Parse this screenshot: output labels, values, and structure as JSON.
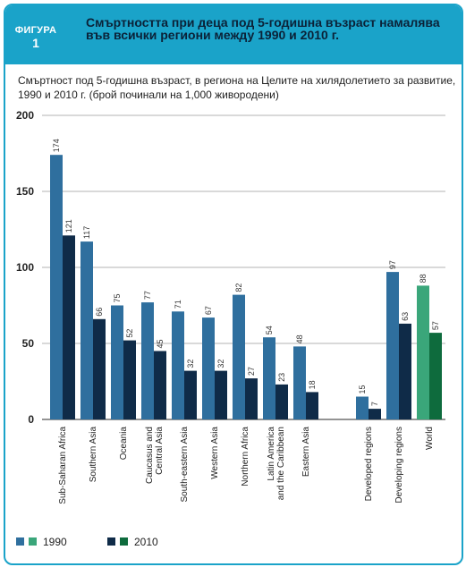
{
  "figure": {
    "word": "ФИГУРА",
    "number": "1"
  },
  "title": "Смъртността при деца под 5-годишна възраст намалява във всички региони между 1990 и 2010 г.",
  "subtitle": "Смъртност под 5-годишна възраст, в региона на Целите на хилядолетието за развитие, 1990 и 2010 г. (брой починали на 1,000 живородени)",
  "colors": {
    "frame": "#1aa3c9",
    "bar_1990": "#2f6f9e",
    "bar_2010": "#0f2b48",
    "world_1990": "#3aa67a",
    "world_2010": "#0e6b3d"
  },
  "chart_data": {
    "type": "bar",
    "ylim": [
      0,
      200
    ],
    "yticks": [
      "0",
      "50",
      "100",
      "150",
      "200"
    ],
    "grid": true,
    "categories": [
      "Sub-Saharan Africa",
      "Southern Asia",
      "Oceania",
      "Caucasus and Central Asia",
      "South-eastern Asia",
      "Western Asia",
      "Northern Africa",
      "Latin America and the Caribbean",
      "Eastern Asia",
      "Developed regions",
      "Developing regions",
      "World"
    ],
    "series": [
      {
        "name": "1990",
        "values": [
          174,
          117,
          75,
          77,
          71,
          67,
          82,
          54,
          48,
          15,
          97,
          88
        ]
      },
      {
        "name": "2010",
        "values": [
          121,
          66,
          52,
          45,
          32,
          32,
          27,
          23,
          18,
          7,
          63,
          57
        ]
      }
    ],
    "legend": {
      "placement": "bottom-left"
    }
  }
}
